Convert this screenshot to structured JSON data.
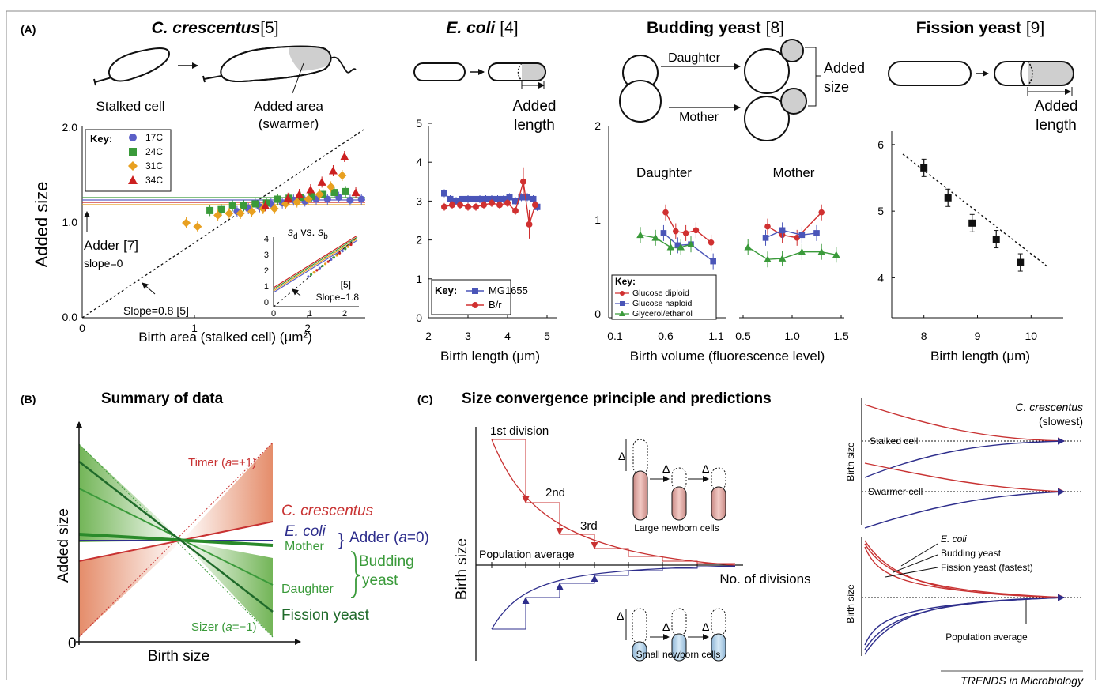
{
  "panel_a": {
    "label": "(A)",
    "titles": {
      "c_cres": {
        "name": "C. crescentus",
        "ref": "[5]"
      },
      "ecoli": {
        "name": "E. coli",
        "ref": "[4]"
      },
      "budding": {
        "name": "Budding yeast",
        "ref": "[8]"
      },
      "fission": {
        "name": "Fission yeast",
        "ref": "[9]"
      }
    },
    "schem": {
      "stalked_cell": "Stalked cell",
      "added_area": "Added area",
      "swarmer": "(swarmer)",
      "added": "Added",
      "length": "length",
      "daughter": "Daughter",
      "mother": "Mother",
      "size": "size"
    }
  },
  "chart_data": [
    {
      "type": "scatter",
      "id": "c_crescentus",
      "xlabel": "Birth area (stalked cell) (μm²)",
      "ylabel": "Added size",
      "xlim": [
        0,
        2.5
      ],
      "ylim": [
        0,
        2.0
      ],
      "xticks": [
        "0",
        "1",
        "2"
      ],
      "yticks": [
        "0.0",
        "1.0",
        "2.0"
      ],
      "legend_title": "Key:",
      "legend_position": "top-left",
      "series": [
        {
          "name": "17C",
          "color": "#5b5fc7",
          "marker": "circle",
          "x": [
            1.37,
            1.47,
            1.57,
            1.67,
            1.77,
            1.87,
            1.97,
            2.07,
            2.17,
            2.27,
            2.37,
            2.47
          ],
          "y": [
            1.12,
            1.15,
            1.17,
            1.2,
            1.21,
            1.24,
            1.23,
            1.25,
            1.25,
            1.27,
            1.24,
            1.25
          ]
        },
        {
          "name": "24C",
          "color": "#3a9a3a",
          "marker": "square",
          "x": [
            1.13,
            1.23,
            1.33,
            1.43,
            1.53,
            1.63,
            1.73,
            1.83,
            1.93,
            2.03,
            2.13,
            2.23,
            2.33
          ],
          "y": [
            1.13,
            1.14,
            1.18,
            1.18,
            1.2,
            1.21,
            1.25,
            1.26,
            1.27,
            1.28,
            1.3,
            1.32,
            1.33
          ]
        },
        {
          "name": "31C",
          "color": "#e8a020",
          "marker": "diamond",
          "x": [
            0.92,
            1.02,
            1.2,
            1.3,
            1.4,
            1.5,
            1.6,
            1.7,
            1.8,
            1.9,
            2.0,
            2.1,
            2.2,
            2.3
          ],
          "y": [
            1.0,
            0.96,
            1.08,
            1.1,
            1.1,
            1.12,
            1.15,
            1.15,
            1.2,
            1.22,
            1.25,
            1.3,
            1.38,
            1.5
          ]
        },
        {
          "name": "34C",
          "color": "#cc2020",
          "marker": "triangle",
          "x": [
            1.62,
            1.82,
            1.92,
            2.02,
            2.12,
            2.22,
            2.32,
            2.42
          ],
          "y": [
            1.18,
            1.26,
            1.3,
            1.35,
            1.43,
            1.55,
            1.7,
            1.32
          ]
        }
      ],
      "annotations": {
        "adder": "Adder [7]",
        "adder_slope": "slope=0",
        "slope_line": "Slope=0.8 [5]"
      },
      "inset": {
        "title_s": "s",
        "title_d": "d",
        "title_vs": " vs. ",
        "title_b": "b",
        "xticks": [
          "0",
          "1",
          "2"
        ],
        "yticks": [
          "0",
          "1",
          "2",
          "3",
          "4"
        ],
        "ref": "[5]",
        "slope": "Slope=1.8"
      }
    },
    {
      "type": "line",
      "id": "e_coli",
      "xlabel": "Birth length (μm)",
      "xlim": [
        2,
        5
      ],
      "ylim": [
        0,
        5
      ],
      "xticks": [
        "2",
        "3",
        "4",
        "5"
      ],
      "yticks": [
        "0",
        "1",
        "2",
        "3",
        "4",
        "5"
      ],
      "legend_title": "Key:",
      "legend_position": "bottom-left",
      "series": [
        {
          "name": "MG1655",
          "color": "#4a55b8",
          "marker": "square",
          "x": [
            2.4,
            2.55,
            2.7,
            2.85,
            3.0,
            3.15,
            3.3,
            3.45,
            3.6,
            3.75,
            3.9,
            4.05,
            4.2,
            4.35,
            4.5,
            4.65,
            4.75
          ],
          "y": [
            3.2,
            3.05,
            3.0,
            3.05,
            3.05,
            3.05,
            3.05,
            3.05,
            3.05,
            3.05,
            3.05,
            3.1,
            3.0,
            3.1,
            3.1,
            3.05,
            2.85
          ]
        },
        {
          "name": "B/r",
          "color": "#d03030",
          "marker": "circle",
          "x": [
            2.4,
            2.6,
            2.8,
            3.0,
            3.2,
            3.4,
            3.6,
            3.8,
            4.0,
            4.2,
            4.4,
            4.55,
            4.7
          ],
          "y": [
            2.85,
            2.9,
            2.9,
            2.85,
            2.85,
            2.9,
            2.95,
            2.9,
            2.95,
            2.75,
            3.5,
            2.4,
            2.9
          ]
        }
      ]
    },
    {
      "type": "line",
      "id": "budding_yeast",
      "xlabel": "Birth volume (fluorescence level)",
      "ylim": [
        0,
        2
      ],
      "yticks": [
        "0",
        "1",
        "2"
      ],
      "xticks_daughter": [
        "0.1",
        "0.6",
        "1.1"
      ],
      "xticks_mother": [
        "0.5",
        "1.0",
        "1.5"
      ],
      "group_labels": [
        "Daughter",
        "Mother"
      ],
      "legend_title": "Key:",
      "legend_position": "bottom-left",
      "series": [
        {
          "name": "Glucose diploid",
          "color": "#d03030",
          "marker": "circle",
          "daughter": {
            "x": [
              0.6,
              0.7,
              0.8,
              0.9,
              1.05
            ],
            "y": [
              1.12,
              0.92,
              0.9,
              0.93,
              0.8
            ]
          },
          "mother": {
            "x": [
              0.75,
              0.9,
              1.05,
              1.3
            ],
            "y": [
              0.97,
              0.88,
              0.85,
              1.12
            ]
          }
        },
        {
          "name": "Glucose haploid",
          "color": "#4a55b8",
          "marker": "square",
          "daughter": {
            "x": [
              0.58,
              0.72,
              0.85,
              1.07
            ],
            "y": [
              0.9,
              0.77,
              0.78,
              0.6
            ]
          },
          "mother": {
            "x": [
              0.73,
              0.9,
              1.1,
              1.25
            ],
            "y": [
              0.85,
              0.93,
              0.88,
              0.9
            ]
          }
        },
        {
          "name": "Glycerol/ethanol",
          "color": "#3a9a3a",
          "marker": "triangle",
          "daughter": {
            "x": [
              0.35,
              0.5,
              0.65,
              0.75,
              0.85
            ],
            "y": [
              0.88,
              0.85,
              0.75,
              0.75,
              0.78
            ]
          },
          "mother": {
            "x": [
              0.55,
              0.75,
              0.9,
              1.1,
              1.3,
              1.45
            ],
            "y": [
              0.75,
              0.62,
              0.63,
              0.7,
              0.7,
              0.67
            ]
          }
        }
      ]
    },
    {
      "type": "scatter",
      "id": "fission_yeast",
      "xlabel": "Birth length (μm)",
      "xlim": [
        7.4,
        10.6
      ],
      "ylim": [
        3.4,
        6.2
      ],
      "xticks": [
        "8",
        "9",
        "10"
      ],
      "yticks": [
        "4",
        "5",
        "6"
      ],
      "series": [
        {
          "name": "",
          "color": "#111111",
          "marker": "square",
          "x": [
            8.0,
            8.45,
            8.9,
            9.35,
            9.8
          ],
          "y": [
            5.65,
            5.2,
            4.82,
            4.58,
            4.23
          ]
        }
      ]
    }
  ],
  "panel_b": {
    "label": "(B)",
    "title": "Summary of data",
    "ylabel": "Added size",
    "xlabel": "Birth size",
    "origin": "0",
    "timer": "Timer (",
    "timer_a": "a",
    "timer_val": "=+1)",
    "sizer": "Sizer (",
    "sizer_a": "a",
    "sizer_val": "=−1)",
    "c_cres": "C. crescentus",
    "ecoli": "E. coli",
    "adder": "Adder (",
    "adder_a": "a",
    "adder_val": "=0)",
    "mother": "Mother",
    "budding": "Budding",
    "yeast": "yeast",
    "daughter": "Daughter",
    "fission": "Fission yeast"
  },
  "panel_c": {
    "label": "(C)",
    "title": "Size convergence principle and predictions",
    "ylabel": "Birth size",
    "xlabel": "No. of divisions",
    "first": "1st division",
    "second": "2nd",
    "third": "3rd",
    "pop_avg": "Population average",
    "large": "Large newborn cells",
    "small": "Small newborn cells",
    "delta": "Δ",
    "right_top": {
      "ylabel": "Birth size",
      "species": "C. crescentus",
      "slowest": "(slowest)",
      "stalked": "Stalked cell",
      "swarmer": "Swarmer cell"
    },
    "right_bottom": {
      "ylabel": "Birth size",
      "ecoli": "E. coli",
      "budding": "Budding yeast",
      "fission": "Fission yeast (fastest)",
      "pop_avg": "Population average"
    }
  },
  "journal": "TRENDS in Microbiology",
  "colors": {
    "red": "#c83232",
    "blue": "#2e2e8c",
    "green": "#3a9a3a",
    "darkgreen": "#1f6a2a",
    "orange": "#e8a020",
    "purple": "#5b5fc7"
  }
}
